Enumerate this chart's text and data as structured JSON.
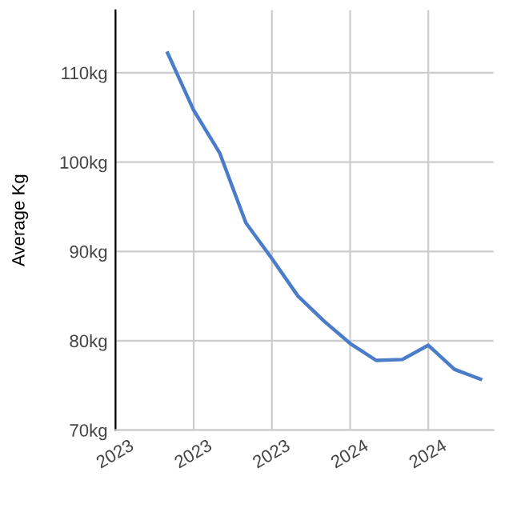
{
  "chart_data": {
    "type": "line",
    "ylabel": "Average Kg",
    "categories": [
      "2023",
      null,
      null,
      "2023",
      null,
      null,
      "2023",
      null,
      null,
      "2024",
      null,
      null,
      "2024",
      null,
      null
    ],
    "series": [
      {
        "color": "#4a7cc9",
        "values": [
          null,
          null,
          112.2,
          105.8,
          101.0,
          93.2,
          89.2,
          85.0,
          82.2,
          79.7,
          77.8,
          77.9,
          79.5,
          76.8,
          75.7
        ]
      }
    ],
    "ylim": [
      70,
      117
    ],
    "yticks": [
      {
        "value": 70,
        "label": "70kg"
      },
      {
        "value": 80,
        "label": "80kg"
      },
      {
        "value": 90,
        "label": "90kg"
      },
      {
        "value": 100,
        "label": "100kg"
      },
      {
        "value": 110,
        "label": "110kg"
      }
    ],
    "grid": true,
    "marker": "none",
    "line_style": "solid"
  }
}
